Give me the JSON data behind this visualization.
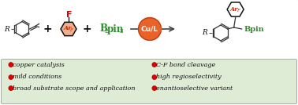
{
  "background_color": "#ffffff",
  "border_color": "#aaaaaa",
  "bottom_bg_color": "#deecd5",
  "bullet_color": "#dd0000",
  "bullet_char": "●",
  "left_bullets": [
    "copper catalysis",
    "mild conditions",
    "broad substrate scope and application"
  ],
  "right_bullets": [
    "C-F bond cleavage",
    "high regioselectivity",
    "enantioselective variant"
  ],
  "bullet_fontsize": 5.8,
  "arene_color": "#cc2200",
  "green_color": "#2e8b2e",
  "orange_circle_color": "#e8622a",
  "orange_circle_edge": "#c04010",
  "cu_text_color": "#ffffff",
  "black_color": "#111111",
  "red_color": "#dd0000",
  "ring_fill_arF": "#f0b090",
  "ring_fill_none": "none"
}
